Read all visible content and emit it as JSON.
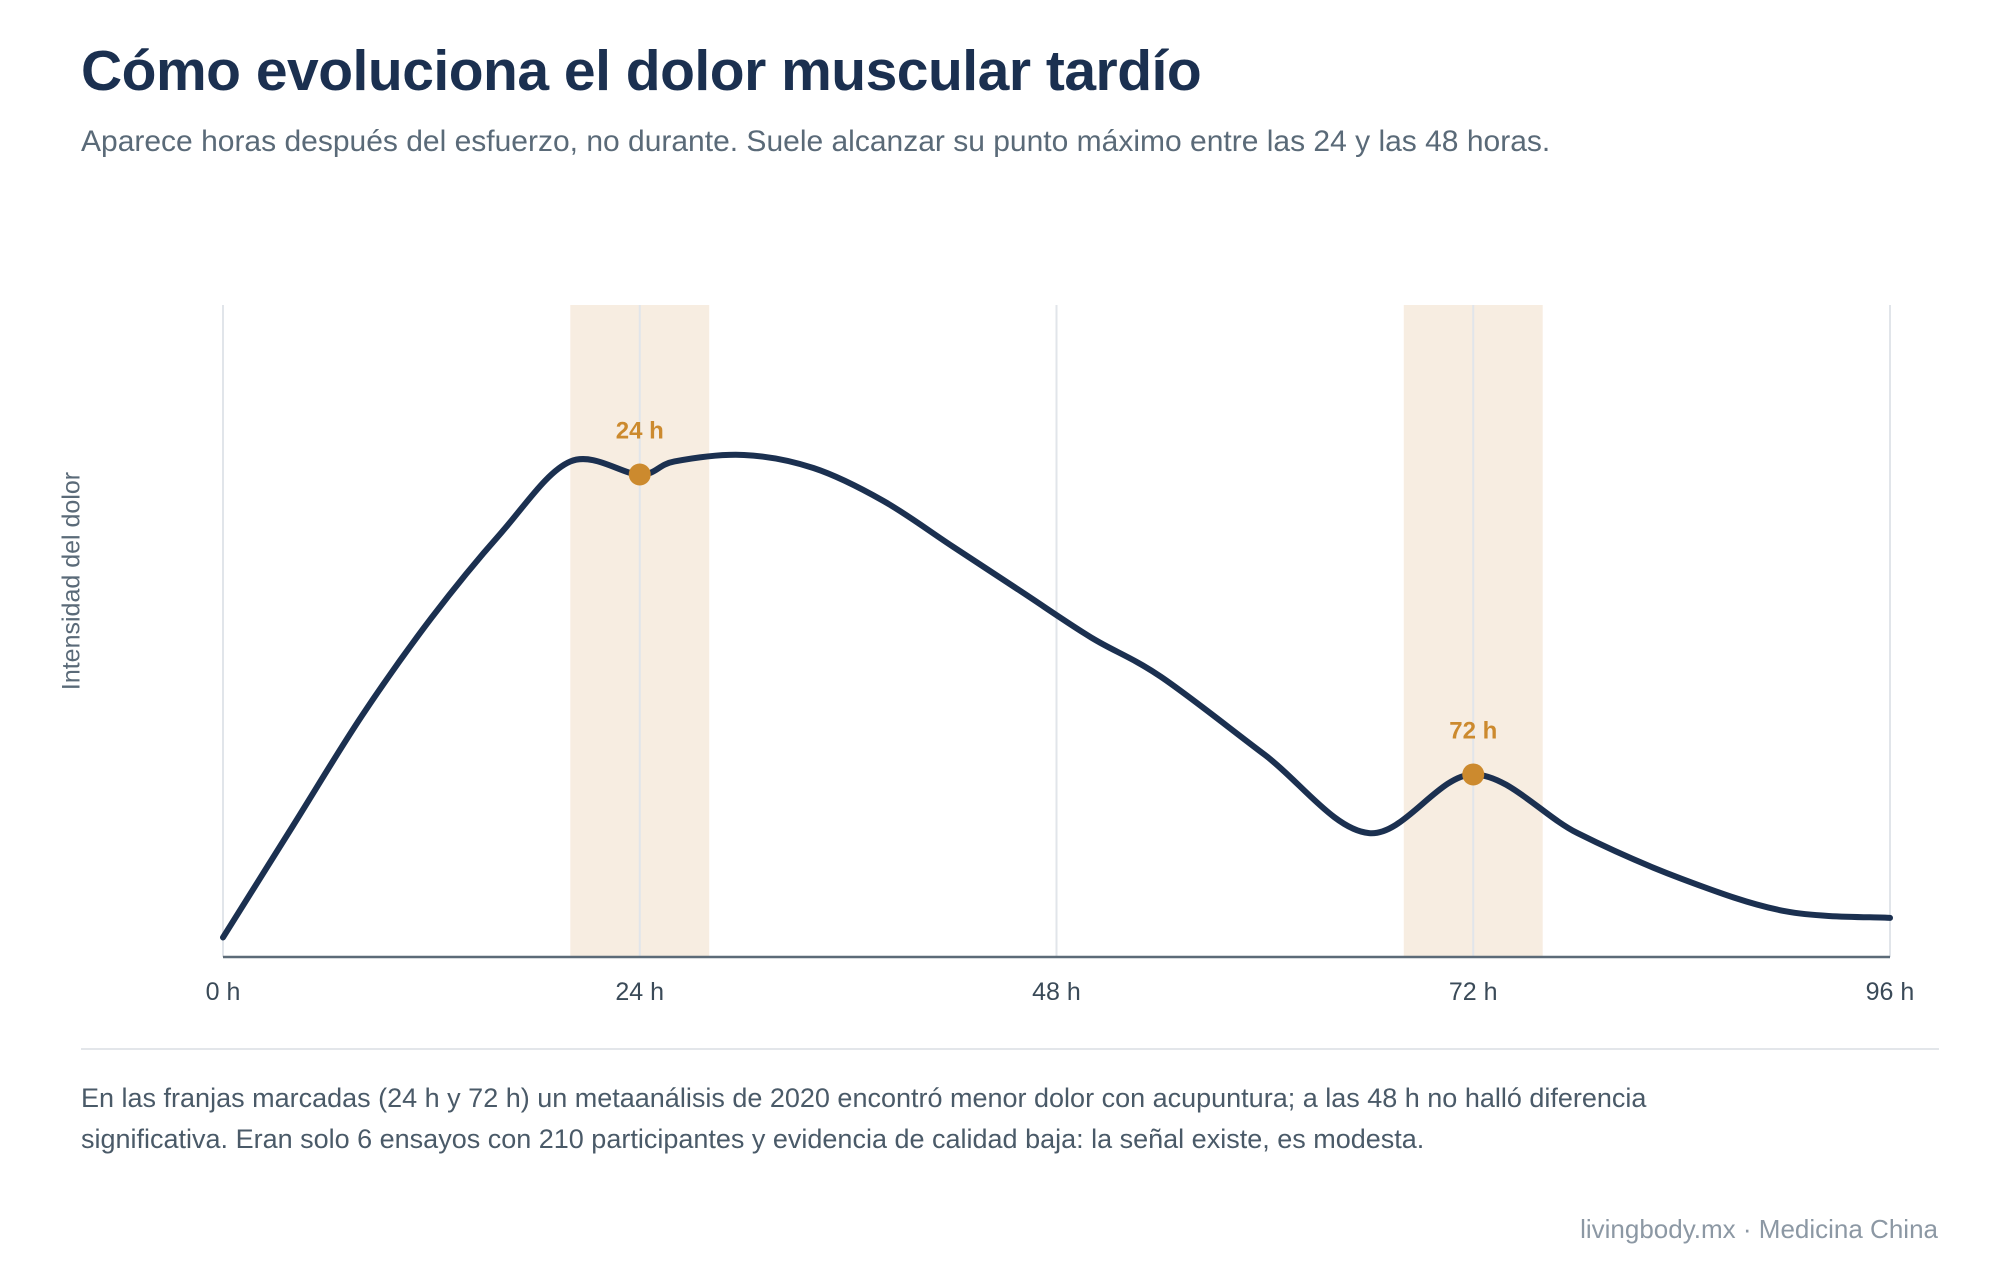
{
  "header": {
    "title": "Cómo evoluciona el dolor muscular tardío",
    "subtitle": "Aparece horas después del esfuerzo, no durante. Suele alcanzar su punto máximo entre las 24 y las 48 horas."
  },
  "colors": {
    "curve": "#1b3050",
    "highlight_band": "#f7ede1",
    "marker": "#cc8a2e",
    "grid": "#e1e5ea",
    "axis": "#5c6b78",
    "tick_text": "#3a4a58"
  },
  "chart_data": {
    "type": "line",
    "title": "",
    "xlabel": "",
    "ylabel": "Intensidad del dolor",
    "x_ticks": [
      0,
      24,
      48,
      72,
      96
    ],
    "x_tick_labels": [
      "0 h",
      "24 h",
      "48 h",
      "72 h",
      "96 h"
    ],
    "xlim": [
      0,
      96
    ],
    "ylim": [
      0,
      100
    ],
    "y_ticks_shown": false,
    "grid": "vertical",
    "series": [
      {
        "x": [
          0,
          4,
          8,
          12,
          16,
          20,
          24,
          26,
          30,
          34,
          38,
          42,
          46,
          50,
          54,
          60,
          66,
          72,
          78,
          84,
          90,
          96
        ],
        "y": [
          3,
          20,
          37,
          52,
          65,
          76,
          74,
          76,
          77,
          75,
          70,
          63,
          56,
          49,
          43,
          31,
          19,
          28,
          19,
          12,
          7,
          6
        ]
      }
    ],
    "highlight_bands": [
      {
        "from": 20,
        "to": 28
      },
      {
        "from": 68,
        "to": 76
      }
    ],
    "annotations": [
      {
        "x": 24,
        "y": 74,
        "label": "24 h"
      },
      {
        "x": 72,
        "y": 28,
        "label": "72 h"
      }
    ]
  },
  "note": "En las franjas marcadas (24 h y 72 h) un metaanálisis de 2020 encontró menor dolor con acupuntura; a las 48 h no halló diferencia significativa. Eran solo 6 ensayos con 210 participantes y evidencia de calidad baja: la señal existe, es modesta.",
  "footer": "livingbody.mx · Medicina China"
}
